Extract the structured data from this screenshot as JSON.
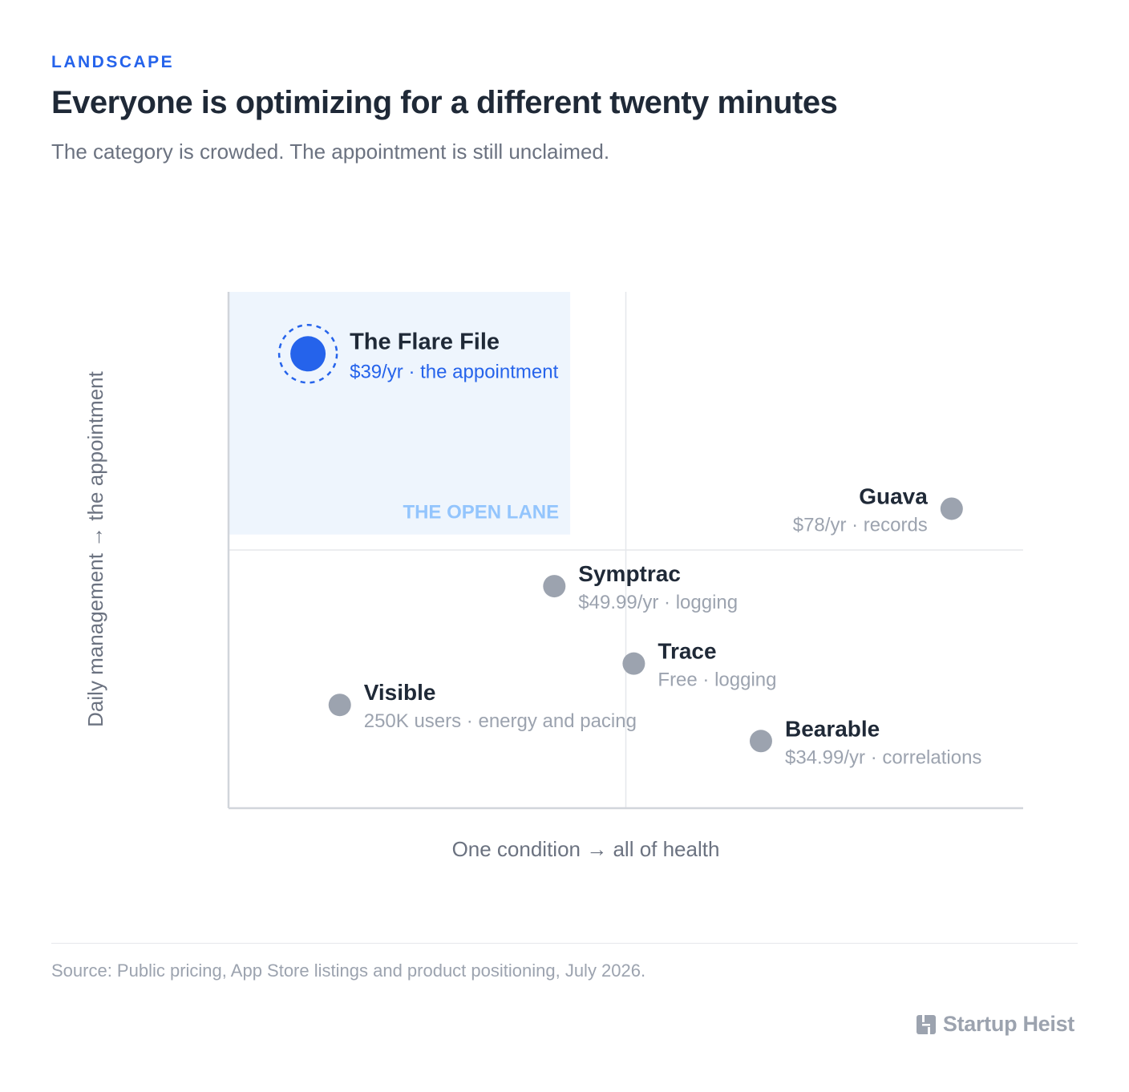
{
  "header": {
    "kicker": "LANDSCAPE",
    "title": "Everyone is optimizing for a different twenty minutes",
    "subtitle": "The category is crowded. The appointment is still unclaimed."
  },
  "footer": {
    "source": "Source: Public pricing, App Store listings and product positioning, July 2026.",
    "brand": "Startup Heist"
  },
  "colors": {
    "accent": "#2563eb",
    "competitor": "#9ca3af",
    "lane_fill": "#eef5fd",
    "lane_label": "#93c5fd",
    "text_dark": "#1f2937",
    "text_muted": "#9ca3af"
  },
  "chart_data": {
    "type": "scatter",
    "xlabel": "One condition → all of health",
    "ylabel": "Daily management → the appointment",
    "xlim": [
      0,
      100
    ],
    "ylim": [
      0,
      100
    ],
    "grid": "quadrant dividers",
    "highlight_region": {
      "label": "THE OPEN LANE",
      "x": [
        0,
        43
      ],
      "y": [
        53,
        100
      ]
    },
    "points": [
      {
        "name": "The Flare File",
        "detail": "$39/yr · the appointment",
        "x": 10,
        "y": 88,
        "highlight": true,
        "label_side": "right"
      },
      {
        "name": "Guava",
        "detail": "$78/yr · records",
        "x": 91,
        "y": 58,
        "highlight": false,
        "label_side": "left"
      },
      {
        "name": "Symptrac",
        "detail": "$49.99/yr · logging",
        "x": 41,
        "y": 43,
        "highlight": false,
        "label_side": "right"
      },
      {
        "name": "Trace",
        "detail": "Free · logging",
        "x": 51,
        "y": 28,
        "highlight": false,
        "label_side": "right"
      },
      {
        "name": "Visible",
        "detail": "250K users · energy and pacing",
        "x": 14,
        "y": 20,
        "highlight": false,
        "label_side": "right"
      },
      {
        "name": "Bearable",
        "detail": "$34.99/yr · correlations",
        "x": 67,
        "y": 13,
        "highlight": false,
        "label_side": "right"
      }
    ]
  }
}
